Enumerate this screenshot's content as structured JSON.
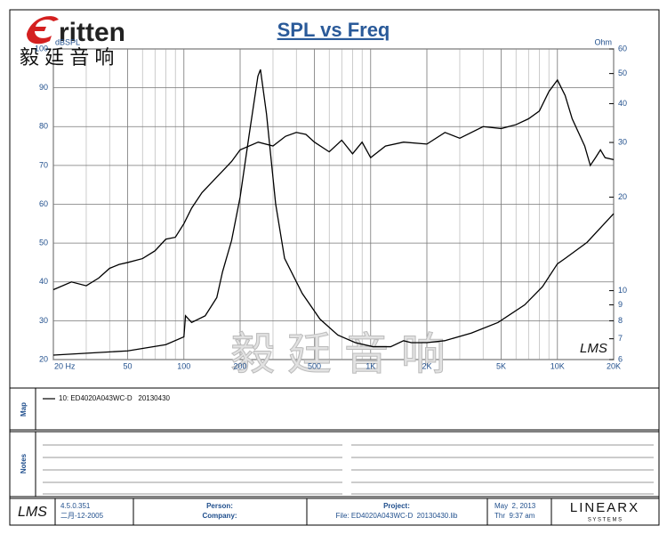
{
  "chart_data": {
    "type": "line",
    "title": "SPL vs Freq",
    "y_label": "dBSPL",
    "y2_label": "Ohm",
    "xscale": "log",
    "xlim": [
      20,
      20000
    ],
    "xticks": [
      {
        "value": 20,
        "label": "20 Hz"
      },
      50,
      100,
      200,
      500,
      {
        "value": 1000,
        "label": "1K"
      },
      {
        "value": 2000,
        "label": "2K"
      },
      {
        "value": 5000,
        "label": "5K"
      },
      {
        "value": 10000,
        "label": "10K"
      },
      {
        "value": 20000,
        "label": "20K"
      }
    ],
    "x_minor_grid": [
      30,
      40,
      60,
      70,
      80,
      90,
      300,
      400,
      600,
      700,
      800,
      900,
      3000,
      4000,
      6000,
      7000,
      8000,
      9000
    ],
    "ylim": [
      20,
      100
    ],
    "yticks": [
      20,
      30,
      40,
      50,
      60,
      70,
      80,
      90,
      100
    ],
    "y2scale": "log",
    "y2lim": [
      6,
      60
    ],
    "y2ticks": [
      6,
      7,
      8,
      9,
      10,
      20,
      30,
      40,
      50,
      60
    ],
    "grid": true,
    "series": [
      {
        "name": "10: ED4020A043WC-D   20130430",
        "color": "#000000",
        "x": [
          20,
          25,
          30,
          35,
          40,
          45,
          50,
          60,
          70,
          80,
          90,
          100,
          110,
          125,
          150,
          180,
          200,
          250,
          300,
          350,
          400,
          450,
          500,
          600,
          700,
          800,
          900,
          1000,
          1200,
          1500,
          2000,
          2500,
          3000,
          4000,
          5000,
          6000,
          7000,
          8000,
          9000,
          10000,
          11000,
          12000,
          14000,
          15000,
          16000,
          17000,
          18000,
          20000
        ],
        "values": [
          38,
          40,
          39,
          41,
          43.5,
          44.5,
          45,
          46,
          48,
          51,
          51.5,
          55,
          59,
          63,
          67,
          71,
          74,
          76,
          75,
          77.5,
          78.5,
          78,
          76,
          73.5,
          76.5,
          73,
          76,
          72,
          75,
          76,
          75.5,
          78.5,
          77,
          80,
          79.5,
          80.5,
          82,
          84,
          89,
          92,
          88,
          82,
          75,
          70,
          72,
          74,
          72,
          71.5
        ]
      },
      {
        "color": "#000000",
        "axis": "y2",
        "x": [
          20,
          50,
          80,
          100,
          102,
          110,
          130,
          150,
          161,
          180,
          200,
          224,
          249,
          257,
          277,
          310,
          346,
          430,
          535,
          666,
          828,
          1030,
          1280,
          1500,
          1650,
          2000,
          2490,
          3460,
          4810,
          6680,
          8320,
          10000,
          11000,
          14400,
          20000
        ],
        "values": [
          6.2,
          6.4,
          6.7,
          7.1,
          8.3,
          7.9,
          8.3,
          9.5,
          11.5,
          14.5,
          20,
          32,
          49,
          51.5,
          37,
          19,
          12.7,
          9.8,
          8.1,
          7.2,
          6.8,
          6.6,
          6.6,
          6.9,
          6.8,
          6.8,
          6.9,
          7.3,
          7.9,
          9.0,
          10.3,
          12.2,
          12.7,
          14.3,
          17.7
        ]
      }
    ]
  },
  "logo": "ritten",
  "logo_cn": "毅 廷 音 响",
  "watermark": "毅 廷 音 响",
  "plot_badge": "LMS",
  "map_label": "Map",
  "notes_label": "Notes",
  "footer": {
    "brand": "LMS",
    "version": "4.5.0.351",
    "build_date": "二月-12-2005",
    "person": "Person:",
    "company": "Company:",
    "project": "Project:",
    "file": "File: ED4020A043WC-D  20130430.lib",
    "date": "May  2, 2013",
    "time": "Thr  9:37 am",
    "vendor": "LINEARX",
    "vendor_sub": "S Y S T E M S"
  }
}
